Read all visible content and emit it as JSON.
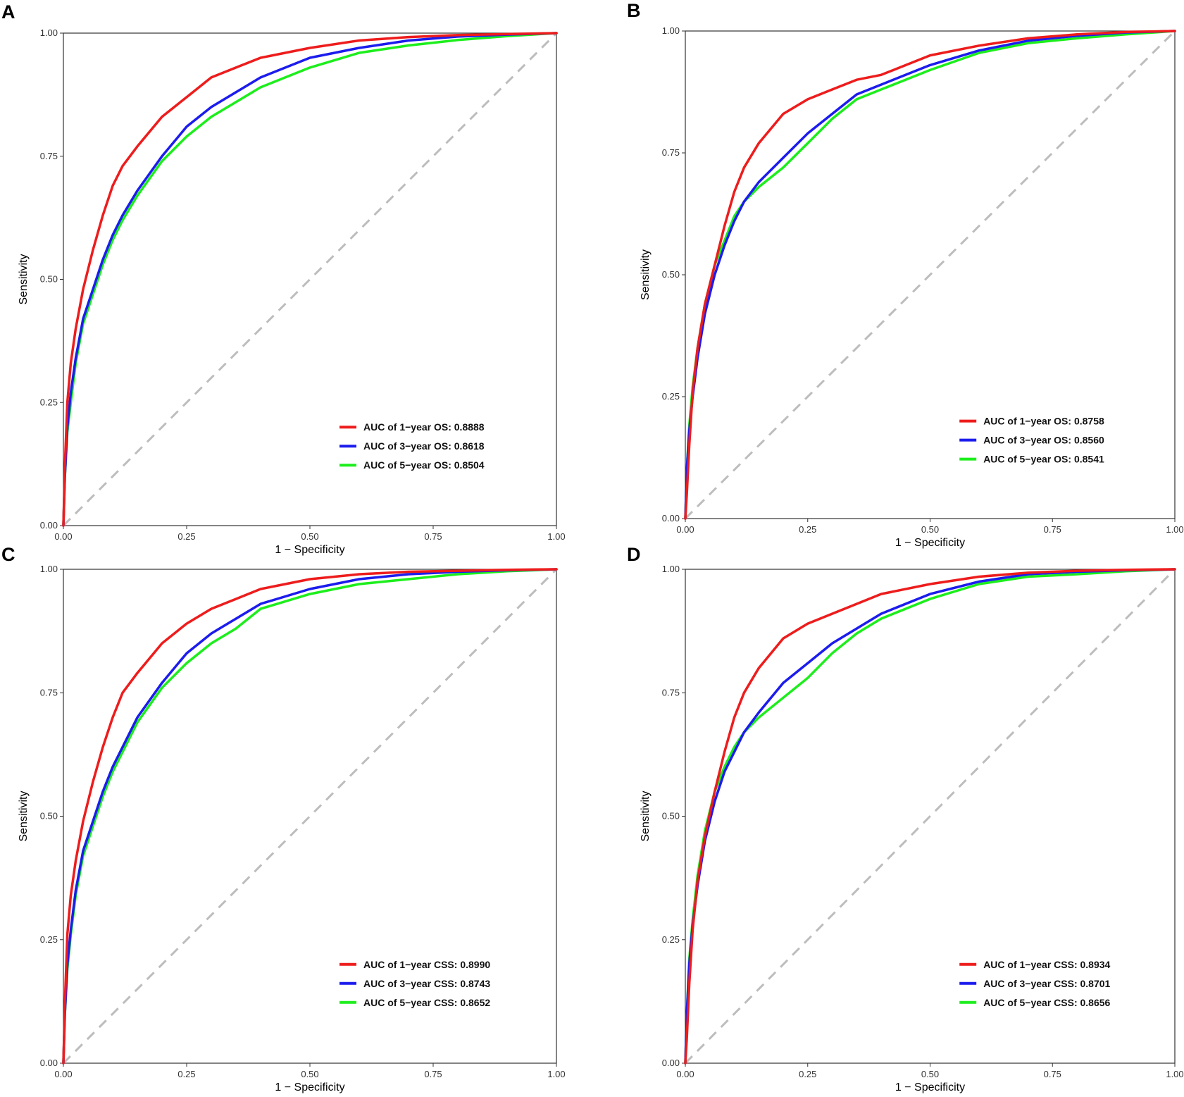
{
  "chart_data": [
    {
      "panel": "A",
      "type": "line",
      "xlabel": "1 − Specificity",
      "ylabel": "Sensitivity",
      "xlim": [
        0,
        1
      ],
      "ylim": [
        0,
        1
      ],
      "xticks": [
        "0.00",
        "0.25",
        "0.50",
        "0.75",
        "1.00"
      ],
      "yticks": [
        "0.00",
        "0.25",
        "0.50",
        "0.75",
        "1.00"
      ],
      "legend_position": "bottom-right",
      "reference_line": {
        "x": [
          0,
          1
        ],
        "y": [
          0,
          1
        ],
        "color": "#bdbdbd",
        "style": "dashed"
      },
      "series": [
        {
          "name": "AUC of 1−year OS: 0.8888",
          "color": "#ee1c1c",
          "x": [
            0,
            0.003,
            0.008,
            0.015,
            0.025,
            0.04,
            0.06,
            0.08,
            0.1,
            0.12,
            0.15,
            0.2,
            0.25,
            0.3,
            0.35,
            0.4,
            0.5,
            0.6,
            0.7,
            0.8,
            0.9,
            1.0
          ],
          "y": [
            0,
            0.12,
            0.25,
            0.33,
            0.4,
            0.48,
            0.56,
            0.63,
            0.69,
            0.73,
            0.77,
            0.83,
            0.87,
            0.91,
            0.93,
            0.95,
            0.97,
            0.985,
            0.992,
            0.996,
            0.998,
            1.0
          ]
        },
        {
          "name": "AUC of 3−year OS: 0.8618",
          "color": "#1c1cee",
          "x": [
            0,
            0.003,
            0.008,
            0.015,
            0.025,
            0.04,
            0.06,
            0.08,
            0.1,
            0.12,
            0.15,
            0.2,
            0.25,
            0.3,
            0.35,
            0.4,
            0.5,
            0.6,
            0.7,
            0.8,
            0.9,
            1.0
          ],
          "y": [
            0,
            0.1,
            0.2,
            0.27,
            0.34,
            0.42,
            0.48,
            0.54,
            0.59,
            0.63,
            0.68,
            0.75,
            0.81,
            0.85,
            0.88,
            0.91,
            0.95,
            0.97,
            0.985,
            0.993,
            0.997,
            1.0
          ]
        },
        {
          "name": "AUC of 5−year OS: 0.8504",
          "color": "#1cee1c",
          "x": [
            0,
            0.003,
            0.008,
            0.015,
            0.025,
            0.04,
            0.06,
            0.08,
            0.1,
            0.12,
            0.15,
            0.2,
            0.25,
            0.3,
            0.35,
            0.4,
            0.5,
            0.6,
            0.7,
            0.8,
            0.9,
            1.0
          ],
          "y": [
            0,
            0.1,
            0.19,
            0.25,
            0.33,
            0.41,
            0.47,
            0.53,
            0.58,
            0.62,
            0.67,
            0.74,
            0.79,
            0.83,
            0.86,
            0.89,
            0.93,
            0.96,
            0.975,
            0.986,
            0.994,
            1.0
          ]
        }
      ]
    },
    {
      "panel": "B",
      "type": "line",
      "xlabel": "1 − Specificity",
      "ylabel": "Sensitivity",
      "xlim": [
        0,
        1
      ],
      "ylim": [
        0,
        1
      ],
      "xticks": [
        "0.00",
        "0.25",
        "0.50",
        "0.75",
        "1.00"
      ],
      "yticks": [
        "0.00",
        "0.25",
        "0.50",
        "0.75",
        "1.00"
      ],
      "legend_position": "bottom-right",
      "reference_line": {
        "x": [
          0,
          1
        ],
        "y": [
          0,
          1
        ],
        "color": "#bdbdbd",
        "style": "dashed"
      },
      "series": [
        {
          "name": "AUC of 1−year OS: 0.8758",
          "color": "#ee1c1c",
          "x": [
            0,
            0.003,
            0.008,
            0.015,
            0.025,
            0.04,
            0.06,
            0.08,
            0.1,
            0.12,
            0.15,
            0.2,
            0.25,
            0.3,
            0.35,
            0.4,
            0.5,
            0.6,
            0.7,
            0.8,
            0.9,
            1.0
          ],
          "y": [
            0,
            0.05,
            0.15,
            0.26,
            0.35,
            0.44,
            0.52,
            0.6,
            0.67,
            0.72,
            0.77,
            0.83,
            0.86,
            0.88,
            0.9,
            0.91,
            0.95,
            0.97,
            0.985,
            0.993,
            0.998,
            1.0
          ]
        },
        {
          "name": "AUC of 3−year OS: 0.8560",
          "color": "#1c1cee",
          "x": [
            0,
            0.003,
            0.008,
            0.015,
            0.025,
            0.04,
            0.06,
            0.08,
            0.1,
            0.12,
            0.15,
            0.2,
            0.25,
            0.3,
            0.35,
            0.4,
            0.5,
            0.6,
            0.7,
            0.8,
            0.9,
            1.0
          ],
          "y": [
            0,
            0.1,
            0.18,
            0.25,
            0.33,
            0.42,
            0.5,
            0.56,
            0.61,
            0.65,
            0.69,
            0.74,
            0.79,
            0.83,
            0.87,
            0.89,
            0.93,
            0.96,
            0.98,
            0.99,
            0.997,
            1.0
          ]
        },
        {
          "name": "AUC of 5−year OS: 0.8541",
          "color": "#1cee1c",
          "x": [
            0,
            0.003,
            0.008,
            0.015,
            0.025,
            0.04,
            0.06,
            0.08,
            0.1,
            0.12,
            0.15,
            0.2,
            0.25,
            0.3,
            0.35,
            0.4,
            0.5,
            0.6,
            0.7,
            0.8,
            0.9,
            1.0
          ],
          "y": [
            0,
            0.1,
            0.19,
            0.27,
            0.35,
            0.44,
            0.52,
            0.57,
            0.62,
            0.65,
            0.68,
            0.72,
            0.77,
            0.82,
            0.86,
            0.88,
            0.92,
            0.955,
            0.975,
            0.985,
            0.993,
            1.0
          ]
        }
      ]
    },
    {
      "panel": "C",
      "type": "line",
      "xlabel": "1 − Specificity",
      "ylabel": "Sensitivity",
      "xlim": [
        0,
        1
      ],
      "ylim": [
        0,
        1
      ],
      "xticks": [
        "0.00",
        "0.25",
        "0.50",
        "0.75",
        "1.00"
      ],
      "yticks": [
        "0.00",
        "0.25",
        "0.50",
        "0.75",
        "1.00"
      ],
      "legend_position": "bottom-right",
      "reference_line": {
        "x": [
          0,
          1
        ],
        "y": [
          0,
          1
        ],
        "color": "#bdbdbd",
        "style": "dashed"
      },
      "series": [
        {
          "name": "AUC of 1−year CSS: 0.8990",
          "color": "#ee1c1c",
          "x": [
            0,
            0.003,
            0.008,
            0.015,
            0.025,
            0.04,
            0.06,
            0.08,
            0.1,
            0.12,
            0.15,
            0.2,
            0.25,
            0.3,
            0.35,
            0.4,
            0.5,
            0.6,
            0.7,
            0.8,
            0.9,
            1.0
          ],
          "y": [
            0,
            0.12,
            0.26,
            0.34,
            0.41,
            0.49,
            0.57,
            0.64,
            0.7,
            0.75,
            0.79,
            0.85,
            0.89,
            0.92,
            0.94,
            0.96,
            0.98,
            0.99,
            0.995,
            0.997,
            0.999,
            1.0
          ]
        },
        {
          "name": "AUC of 3−year CSS: 0.8743",
          "color": "#1c1cee",
          "x": [
            0,
            0.003,
            0.008,
            0.015,
            0.025,
            0.04,
            0.06,
            0.08,
            0.1,
            0.12,
            0.15,
            0.2,
            0.25,
            0.3,
            0.35,
            0.4,
            0.5,
            0.6,
            0.7,
            0.8,
            0.9,
            1.0
          ],
          "y": [
            0,
            0.1,
            0.2,
            0.27,
            0.35,
            0.43,
            0.49,
            0.55,
            0.6,
            0.64,
            0.7,
            0.77,
            0.83,
            0.87,
            0.9,
            0.93,
            0.96,
            0.98,
            0.99,
            0.995,
            0.998,
            1.0
          ]
        },
        {
          "name": "AUC of 5−year CSS: 0.8652",
          "color": "#1cee1c",
          "x": [
            0,
            0.003,
            0.008,
            0.015,
            0.025,
            0.04,
            0.06,
            0.08,
            0.1,
            0.12,
            0.15,
            0.2,
            0.25,
            0.3,
            0.35,
            0.4,
            0.5,
            0.6,
            0.7,
            0.8,
            0.9,
            1.0
          ],
          "y": [
            0,
            0.1,
            0.19,
            0.26,
            0.34,
            0.42,
            0.48,
            0.54,
            0.59,
            0.63,
            0.69,
            0.76,
            0.81,
            0.85,
            0.88,
            0.92,
            0.95,
            0.97,
            0.98,
            0.99,
            0.996,
            1.0
          ]
        }
      ]
    },
    {
      "panel": "D",
      "type": "line",
      "xlabel": "1 − Specificity",
      "ylabel": "Sensitivity",
      "xlim": [
        0,
        1
      ],
      "ylim": [
        0,
        1
      ],
      "xticks": [
        "0.00",
        "0.25",
        "0.50",
        "0.75",
        "1.00"
      ],
      "yticks": [
        "0.00",
        "0.25",
        "0.50",
        "0.75",
        "1.00"
      ],
      "legend_position": "bottom-right",
      "reference_line": {
        "x": [
          0,
          1
        ],
        "y": [
          0,
          1
        ],
        "color": "#bdbdbd",
        "style": "dashed"
      },
      "series": [
        {
          "name": "AUC of 1−year CSS: 0.8934",
          "color": "#ee1c1c",
          "x": [
            0,
            0.003,
            0.008,
            0.015,
            0.025,
            0.04,
            0.06,
            0.08,
            0.1,
            0.12,
            0.15,
            0.2,
            0.25,
            0.3,
            0.35,
            0.4,
            0.5,
            0.6,
            0.7,
            0.8,
            0.9,
            1.0
          ],
          "y": [
            0,
            0.05,
            0.16,
            0.27,
            0.37,
            0.46,
            0.55,
            0.63,
            0.7,
            0.75,
            0.8,
            0.86,
            0.89,
            0.91,
            0.93,
            0.95,
            0.97,
            0.985,
            0.993,
            0.997,
            0.999,
            1.0
          ]
        },
        {
          "name": "AUC of 3−year CSS: 0.8701",
          "color": "#1c1cee",
          "x": [
            0,
            0.003,
            0.008,
            0.015,
            0.025,
            0.04,
            0.06,
            0.08,
            0.1,
            0.12,
            0.15,
            0.2,
            0.25,
            0.3,
            0.35,
            0.4,
            0.5,
            0.6,
            0.7,
            0.8,
            0.9,
            1.0
          ],
          "y": [
            0,
            0.1,
            0.2,
            0.28,
            0.36,
            0.45,
            0.53,
            0.59,
            0.63,
            0.67,
            0.71,
            0.77,
            0.81,
            0.85,
            0.88,
            0.91,
            0.95,
            0.975,
            0.99,
            0.995,
            0.998,
            1.0
          ]
        },
        {
          "name": "AUC of 5−year CSS: 0.8656",
          "color": "#1cee1c",
          "x": [
            0,
            0.003,
            0.008,
            0.015,
            0.025,
            0.04,
            0.06,
            0.08,
            0.1,
            0.12,
            0.15,
            0.2,
            0.25,
            0.3,
            0.35,
            0.4,
            0.5,
            0.6,
            0.7,
            0.8,
            0.9,
            1.0
          ],
          "y": [
            0,
            0.1,
            0.21,
            0.29,
            0.38,
            0.47,
            0.55,
            0.6,
            0.64,
            0.67,
            0.7,
            0.74,
            0.78,
            0.83,
            0.87,
            0.9,
            0.94,
            0.97,
            0.985,
            0.99,
            0.996,
            1.0
          ]
        }
      ]
    }
  ]
}
